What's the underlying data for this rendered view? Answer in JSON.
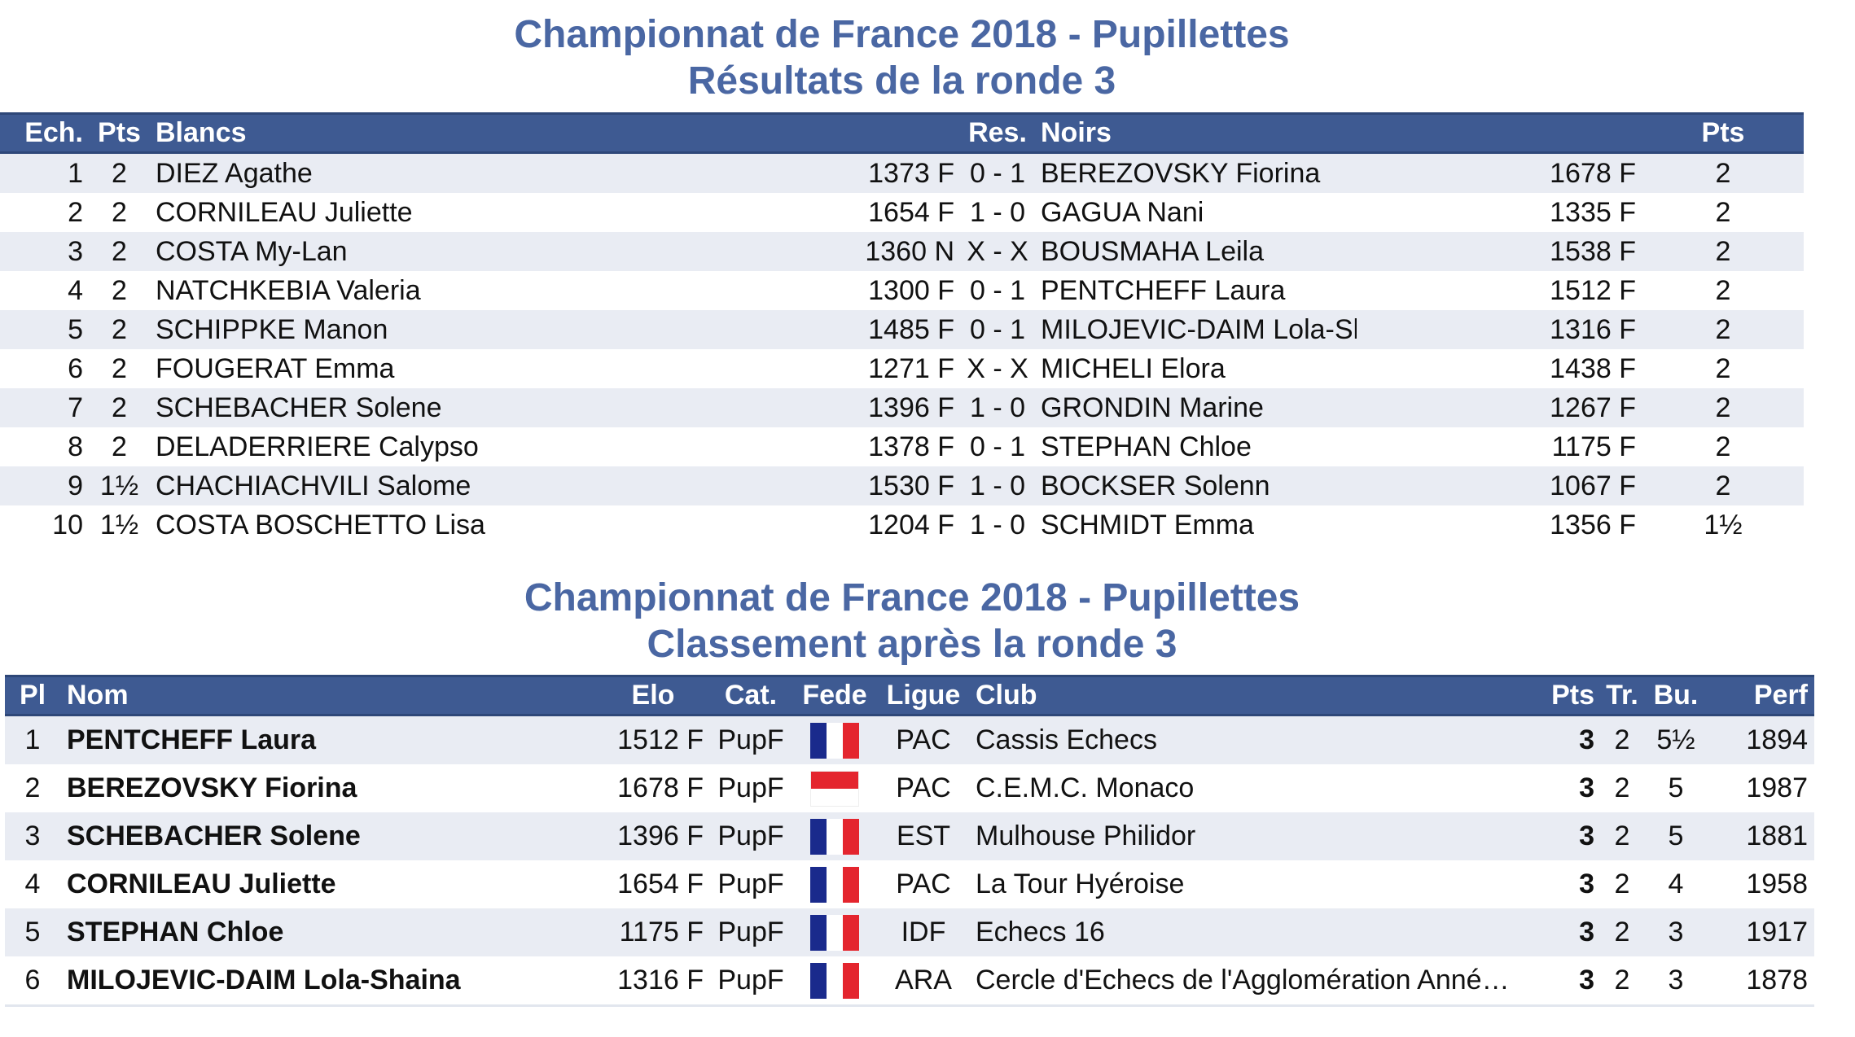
{
  "results": {
    "title_line1": "Championnat de France 2018 - Pupillettes",
    "title_line2": "Résultats de la ronde 3",
    "headers": {
      "board": "Ech.",
      "pts": "Pts",
      "white": "Blancs",
      "res": "Res.",
      "black": "Noirs",
      "pts2": "Pts"
    },
    "rows": [
      {
        "board": "1",
        "w_pts": "2",
        "white": "DIEZ Agathe",
        "w_elo": "1373 F",
        "res": "0 - 1",
        "black": "BEREZOVSKY Fiorina",
        "b_elo": "1678 F",
        "b_pts": "2"
      },
      {
        "board": "2",
        "w_pts": "2",
        "white": "CORNILEAU Juliette",
        "w_elo": "1654 F",
        "res": "1 - 0",
        "black": "GAGUA Nani",
        "b_elo": "1335 F",
        "b_pts": "2"
      },
      {
        "board": "3",
        "w_pts": "2",
        "white": "COSTA My-Lan",
        "w_elo": "1360 N",
        "res": "X - X",
        "black": "BOUSMAHA Leila",
        "b_elo": "1538 F",
        "b_pts": "2"
      },
      {
        "board": "4",
        "w_pts": "2",
        "white": "NATCHKEBIA Valeria",
        "w_elo": "1300 F",
        "res": "0 - 1",
        "black": "PENTCHEFF Laura",
        "b_elo": "1512 F",
        "b_pts": "2"
      },
      {
        "board": "5",
        "w_pts": "2",
        "white": "SCHIPPKE Manon",
        "w_elo": "1485 F",
        "res": "0 - 1",
        "black": "MILOJEVIC-DAIM Lola-Shaina",
        "b_elo": "1316 F",
        "b_pts": "2"
      },
      {
        "board": "6",
        "w_pts": "2",
        "white": "FOUGERAT Emma",
        "w_elo": "1271 F",
        "res": "X - X",
        "black": "MICHELI Elora",
        "b_elo": "1438 F",
        "b_pts": "2"
      },
      {
        "board": "7",
        "w_pts": "2",
        "white": "SCHEBACHER Solene",
        "w_elo": "1396 F",
        "res": "1 - 0",
        "black": "GRONDIN Marine",
        "b_elo": "1267 F",
        "b_pts": "2"
      },
      {
        "board": "8",
        "w_pts": "2",
        "white": "DELADERRIERE Calypso",
        "w_elo": "1378 F",
        "res": "0 - 1",
        "black": "STEPHAN Chloe",
        "b_elo": "1175 F",
        "b_pts": "2"
      },
      {
        "board": "9",
        "w_pts": "1½",
        "white": "CHACHIACHVILI Salome",
        "w_elo": "1530 F",
        "res": "1 - 0",
        "black": "BOCKSER Solenn",
        "b_elo": "1067 F",
        "b_pts": "2"
      },
      {
        "board": "10",
        "w_pts": "1½",
        "white": "COSTA BOSCHETTO Lisa",
        "w_elo": "1204 F",
        "res": "1 - 0",
        "black": "SCHMIDT Emma",
        "b_elo": "1356 F",
        "b_pts": "1½"
      }
    ]
  },
  "standings": {
    "title_line1": "Championnat de France 2018 - Pupillettes",
    "title_line2": "Classement après la ronde 3",
    "headers": {
      "pl": "Pl",
      "name": "Nom",
      "elo": "Elo",
      "cat": "Cat.",
      "fede": "Fede",
      "ligue": "Ligue",
      "club": "Club",
      "pts": "Pts",
      "tr": "Tr.",
      "bu": "Bu.",
      "perf": "Perf"
    },
    "flag_colors": {
      "fra": [
        "#1a2a8c",
        "#ffffff",
        "#e4252e"
      ],
      "mon": [
        "#e4252e",
        "#ffffff"
      ]
    },
    "rows": [
      {
        "pl": "1",
        "name": "PENTCHEFF Laura",
        "elo": "1512 F",
        "cat": "PupF",
        "flag": "fra",
        "ligue": "PAC",
        "club": "Cassis Echecs",
        "pts": "3",
        "tr": "2",
        "bu": "5½",
        "perf": "1894"
      },
      {
        "pl": "2",
        "name": "BEREZOVSKY Fiorina",
        "elo": "1678 F",
        "cat": "PupF",
        "flag": "mon",
        "ligue": "PAC",
        "club": "C.E.M.C. Monaco",
        "pts": "3",
        "tr": "2",
        "bu": "5",
        "perf": "1987"
      },
      {
        "pl": "3",
        "name": "SCHEBACHER Solene",
        "elo": "1396 F",
        "cat": "PupF",
        "flag": "fra",
        "ligue": "EST",
        "club": "Mulhouse Philidor",
        "pts": "3",
        "tr": "2",
        "bu": "5",
        "perf": "1881"
      },
      {
        "pl": "4",
        "name": "CORNILEAU Juliette",
        "elo": "1654 F",
        "cat": "PupF",
        "flag": "fra",
        "ligue": "PAC",
        "club": "La Tour Hyéroise",
        "pts": "3",
        "tr": "2",
        "bu": "4",
        "perf": "1958"
      },
      {
        "pl": "5",
        "name": "STEPHAN Chloe",
        "elo": "1175 F",
        "cat": "PupF",
        "flag": "fra",
        "ligue": "IDF",
        "club": "Echecs 16",
        "pts": "3",
        "tr": "2",
        "bu": "3",
        "perf": "1917"
      },
      {
        "pl": "6",
        "name": "MILOJEVIC-DAIM Lola-Shaina",
        "elo": "1316 F",
        "cat": "PupF",
        "flag": "fra",
        "ligue": "ARA",
        "club": "Cercle d'Echecs de l'Agglomération Anné…",
        "pts": "3",
        "tr": "2",
        "bu": "3",
        "perf": "1878"
      }
    ]
  }
}
